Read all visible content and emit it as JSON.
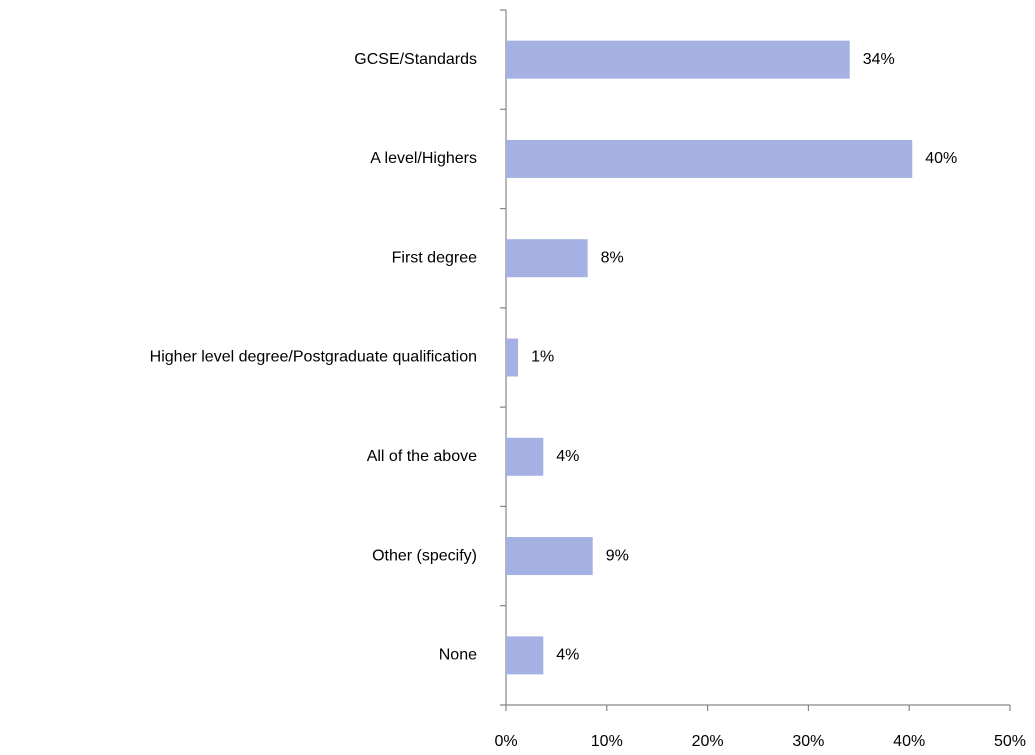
{
  "chart_data": {
    "type": "hbar",
    "categories": [
      "GCSE/Standards",
      "A level/Highers",
      "First degree",
      "Higher level degree/Postgraduate qualification",
      "All of the above",
      "Other (specify)",
      "None"
    ],
    "values": [
      34.1,
      40.3,
      8.1,
      1.2,
      3.7,
      8.6,
      3.7
    ],
    "value_labels": [
      "34%",
      "40%",
      "8%",
      "1%",
      "4%",
      "9%",
      "4%"
    ],
    "color": "#a5b0e3",
    "xlim": [
      0,
      50
    ],
    "xticks": [
      {
        "value": 0,
        "label": "0%"
      },
      {
        "value": 10,
        "label": "10%"
      },
      {
        "value": 20,
        "label": "20%"
      },
      {
        "value": 30,
        "label": "30%"
      },
      {
        "value": 40,
        "label": "40%"
      },
      {
        "value": 50,
        "label": "50%"
      }
    ]
  }
}
